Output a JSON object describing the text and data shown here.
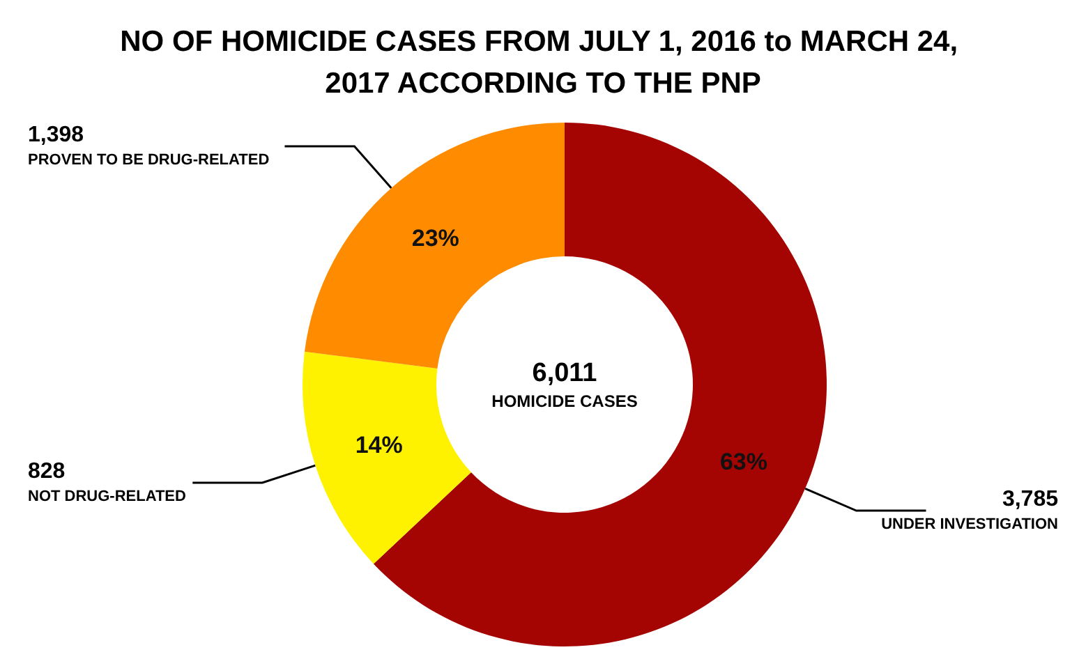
{
  "chart_data": {
    "type": "donut",
    "title": "NO OF HOMICIDE CASES FROM JULY 1, 2016 to MARCH 24, 2017 ACCORDING TO THE PNP",
    "categories": [
      "UNDER INVESTIGATION",
      "NOT DRUG-RELATED",
      "PROVEN TO BE DRUG-RELATED"
    ],
    "values": [
      63,
      14,
      23
    ],
    "colors": [
      "#a50502",
      "#fff200",
      "#ff8c00"
    ],
    "value_labels": [
      "63%",
      "14%",
      "23%"
    ],
    "annotations": [
      {
        "text": "3,785",
        "x": "UNDER INVESTIGATION"
      },
      {
        "text": "828",
        "x": "NOT DRUG-RELATED"
      },
      {
        "text": "1,398",
        "x": "PROVEN TO BE DRUG-RELATED"
      },
      "6,011",
      "HOMICIDE CASES"
    ]
  }
}
